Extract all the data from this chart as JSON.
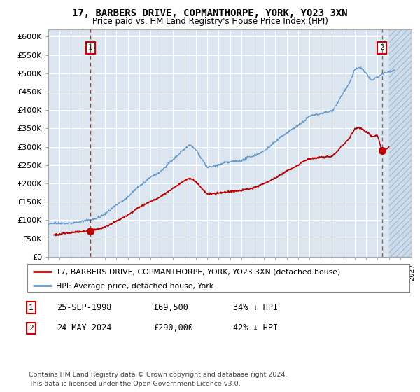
{
  "title": "17, BARBERS DRIVE, COPMANTHORPE, YORK, YO23 3XN",
  "subtitle": "Price paid vs. HM Land Registry's House Price Index (HPI)",
  "plot_bg_color": "#dce6f1",
  "hpi_color": "#6699cc",
  "price_color": "#c00000",
  "marker_color": "#c00000",
  "sale1_date": 1998.73,
  "sale1_price": 69500,
  "sale1_label": "1",
  "sale2_date": 2024.39,
  "sale2_price": 290000,
  "sale2_label": "2",
  "xmin": 1995,
  "xmax": 2027,
  "ymin": 0,
  "ymax": 620000,
  "yticks": [
    0,
    50000,
    100000,
    150000,
    200000,
    250000,
    300000,
    350000,
    400000,
    450000,
    500000,
    550000,
    600000
  ],
  "ytick_labels": [
    "£0",
    "£50K",
    "£100K",
    "£150K",
    "£200K",
    "£250K",
    "£300K",
    "£350K",
    "£400K",
    "£450K",
    "£500K",
    "£550K",
    "£600K"
  ],
  "legend_line1": "17, BARBERS DRIVE, COPMANTHORPE, YORK, YO23 3XN (detached house)",
  "legend_line2": "HPI: Average price, detached house, York",
  "note1_num": "1",
  "note1_date": "25-SEP-1998",
  "note1_price": "£69,500",
  "note1_hpi": "34% ↓ HPI",
  "note2_num": "2",
  "note2_date": "24-MAY-2024",
  "note2_price": "£290,000",
  "note2_hpi": "42% ↓ HPI",
  "footnote": "Contains HM Land Registry data © Crown copyright and database right 2024.\nThis data is licensed under the Open Government Licence v3.0."
}
